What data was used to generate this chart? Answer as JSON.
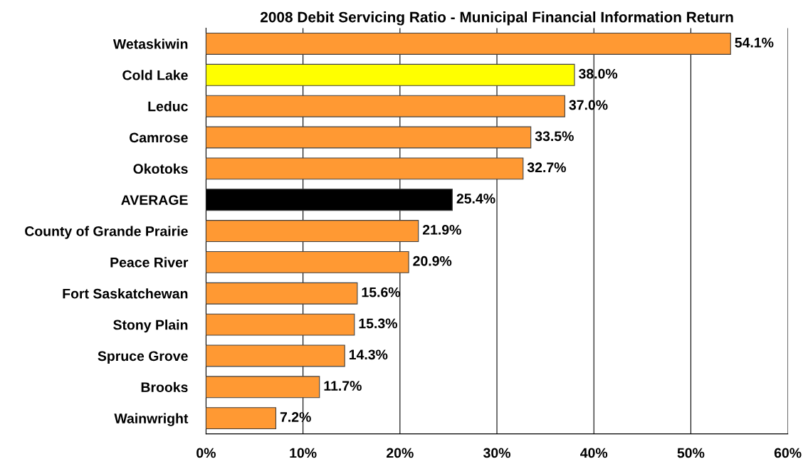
{
  "chart_data": {
    "type": "bar",
    "orientation": "horizontal",
    "title": "2008 Debit Servicing Ratio - Municipal Financial Information Return",
    "categories": [
      "Wetaskiwin",
      "Cold Lake",
      "Leduc",
      "Camrose",
      "Okotoks",
      "AVERAGE",
      "County of Grande Prairie",
      "Peace River",
      "Fort Saskatchewan",
      "Stony Plain",
      "Spruce Grove",
      "Brooks",
      "Wainwright"
    ],
    "values": [
      54.1,
      38.0,
      37.0,
      33.5,
      32.7,
      25.4,
      21.9,
      20.9,
      15.6,
      15.3,
      14.3,
      11.7,
      7.2
    ],
    "value_labels": [
      "54.1%",
      "38.0%",
      "37.0%",
      "33.5%",
      "32.7%",
      "25.4%",
      "21.9%",
      "20.9%",
      "15.6%",
      "15.3%",
      "14.3%",
      "11.7%",
      "7.2%"
    ],
    "colors": [
      "#ff9933",
      "#ffff00",
      "#ff9933",
      "#ff9933",
      "#ff9933",
      "#000000",
      "#ff9933",
      "#ff9933",
      "#ff9933",
      "#ff9933",
      "#ff9933",
      "#ff9933",
      "#ff9933"
    ],
    "xlim": [
      0,
      60
    ],
    "xticks": [
      {
        "value": 0,
        "label": "0%"
      },
      {
        "value": 10,
        "label": "10%"
      },
      {
        "value": 20,
        "label": "20%"
      },
      {
        "value": 30,
        "label": "30%"
      },
      {
        "value": 40,
        "label": "40%"
      },
      {
        "value": 50,
        "label": "50%"
      },
      {
        "value": 60,
        "label": "60%"
      }
    ],
    "grid": "x"
  }
}
